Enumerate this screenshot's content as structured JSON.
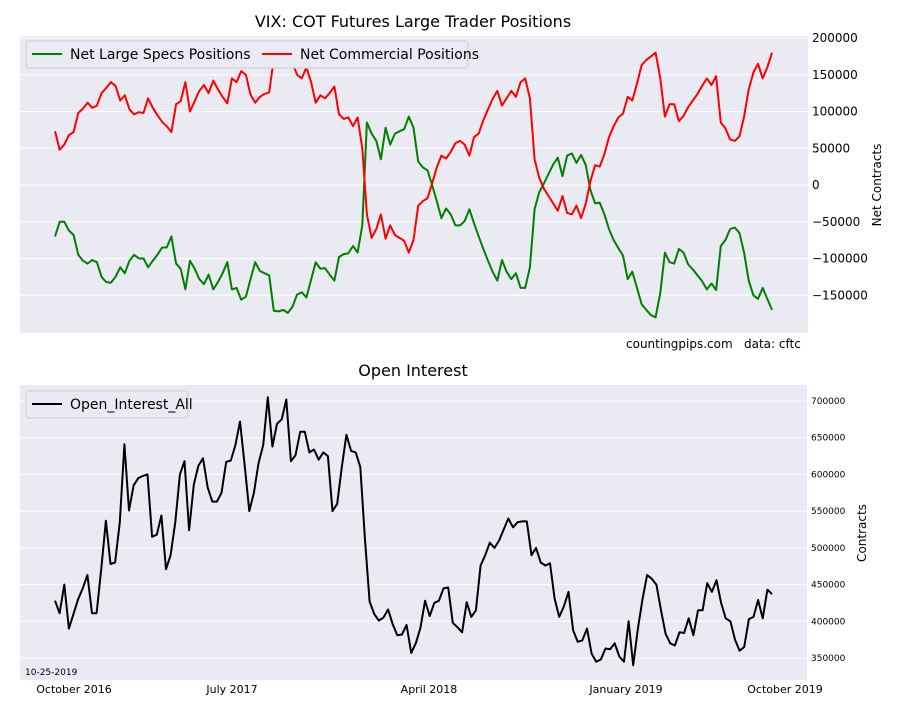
{
  "chart_data": [
    {
      "type": "line",
      "title": "VIX: COT Futures Large Trader Positions",
      "ylabel": "Net Contracts",
      "ylim": [
        -200000,
        200000
      ],
      "yticks": [
        -150000,
        -100000,
        -50000,
        0,
        50000,
        100000,
        150000,
        200000
      ],
      "ytick_labels": [
        "−150000",
        "−100000",
        "−50000",
        "0",
        "50000",
        "100000",
        "150000",
        "200000"
      ],
      "grid": true,
      "legend_position": "top-left",
      "legend_columns": 2,
      "annotations": [
        "countingpips.com",
        "data: cftc"
      ],
      "series": [
        {
          "name": "Net Large Specs Positions",
          "color": "#008000",
          "values": [
            -70000,
            -50000,
            -50000,
            -62000,
            -68000,
            -95000,
            -103000,
            -107000,
            -102000,
            -105000,
            -125000,
            -132000,
            -133000,
            -125000,
            -112000,
            -120000,
            -103000,
            -95000,
            -100000,
            -100000,
            -112000,
            -103000,
            -95000,
            -85000,
            -85000,
            -70000,
            -107000,
            -114000,
            -142000,
            -103000,
            -114000,
            -128000,
            -135000,
            -122000,
            -142000,
            -132000,
            -120000,
            -105000,
            -142000,
            -140000,
            -156000,
            -152000,
            -128000,
            -105000,
            -117000,
            -120000,
            -123000,
            -171000,
            -172000,
            -170000,
            -174000,
            -166000,
            -149000,
            -146000,
            -153000,
            -129000,
            -105000,
            -114000,
            -113000,
            -122000,
            -130000,
            -98000,
            -94000,
            -93000,
            -83000,
            -92000,
            -55000,
            85000,
            70000,
            60000,
            35000,
            78000,
            55000,
            70000,
            73000,
            76000,
            93000,
            78000,
            32000,
            24000,
            20000,
            0,
            -22000,
            -45000,
            -32000,
            -40000,
            -55000,
            -55000,
            -49000,
            -33000,
            -52000,
            -70000,
            -87000,
            -103000,
            -118000,
            -130000,
            -102000,
            -118000,
            -128000,
            -120000,
            -140000,
            -140000,
            -112000,
            -33000,
            -10000,
            2000,
            15000,
            28000,
            37000,
            12000,
            40000,
            43000,
            30000,
            41000,
            27000,
            -7000,
            -25000,
            -24000,
            -40000,
            -60000,
            -75000,
            -86000,
            -96000,
            -128000,
            -118000,
            -140000,
            -162000,
            -170000,
            -177000,
            -180000,
            -147000,
            -92000,
            -105000,
            -107000,
            -87000,
            -92000,
            -108000,
            -115000,
            -123000,
            -131000,
            -142000,
            -134000,
            -143000,
            -83000,
            -75000,
            -60000,
            -58000,
            -65000,
            -92000,
            -130000,
            -150000,
            -155000,
            -140000,
            -155000,
            -170000
          ]
        },
        {
          "name": "Net Commercial Positions",
          "color": "#ff0000",
          "values": [
            73000,
            48000,
            55000,
            68000,
            72000,
            98000,
            104000,
            112000,
            105000,
            108000,
            125000,
            132000,
            140000,
            135000,
            115000,
            122000,
            103000,
            96000,
            99000,
            98000,
            118000,
            105000,
            95000,
            86000,
            80000,
            72000,
            110000,
            114000,
            140000,
            100000,
            114000,
            128000,
            136000,
            125000,
            142000,
            130000,
            120000,
            111000,
            145000,
            140000,
            155000,
            150000,
            123000,
            112000,
            120000,
            124000,
            126000,
            172000,
            175000,
            172000,
            176000,
            166000,
            150000,
            145000,
            160000,
            140000,
            112000,
            122000,
            118000,
            125000,
            134000,
            96000,
            90000,
            92000,
            80000,
            92000,
            50000,
            -40000,
            -72000,
            -60000,
            -40000,
            -73000,
            -55000,
            -68000,
            -72000,
            -76000,
            -92000,
            -75000,
            -28000,
            -22000,
            -18000,
            2000,
            24000,
            40000,
            36000,
            45000,
            57000,
            60000,
            55000,
            40000,
            65000,
            70000,
            88000,
            103000,
            117000,
            128000,
            108000,
            118000,
            128000,
            120000,
            140000,
            145000,
            118000,
            35000,
            10000,
            -5000,
            -15000,
            -25000,
            -35000,
            -15000,
            -38000,
            -40000,
            -28000,
            -45000,
            -25000,
            5000,
            27000,
            25000,
            42000,
            65000,
            80000,
            92000,
            97000,
            120000,
            115000,
            138000,
            163000,
            170000,
            175000,
            180000,
            145000,
            93000,
            110000,
            110000,
            87000,
            94000,
            106000,
            115000,
            124000,
            135000,
            145000,
            136000,
            148000,
            85000,
            77000,
            62000,
            60000,
            66000,
            93000,
            130000,
            153000,
            165000,
            145000,
            160000,
            180000
          ]
        }
      ]
    },
    {
      "type": "line",
      "title": "Open Interest",
      "ylabel": "Contracts",
      "ylim": [
        330000,
        720000
      ],
      "yticks": [
        350000,
        400000,
        450000,
        500000,
        550000,
        600000,
        650000,
        700000
      ],
      "ytick_labels": [
        "350000",
        "400000",
        "450000",
        "500000",
        "550000",
        "600000",
        "650000",
        "700000"
      ],
      "xtick_labels": [
        "October 2016",
        "July 2017",
        "April 2018",
        "January 2019",
        "October 2019"
      ],
      "date_label": "10-25-2019",
      "grid": true,
      "legend_position": "top-left",
      "series": [
        {
          "name": "Open_Interest_All",
          "color": "#000000",
          "values": [
            428000,
            411000,
            450000,
            390000,
            410000,
            430000,
            445000,
            463000,
            411000,
            411000,
            472000,
            537000,
            478000,
            480000,
            535000,
            641000,
            551000,
            585000,
            595000,
            598000,
            600000,
            515000,
            518000,
            544000,
            471000,
            490000,
            535000,
            600000,
            618000,
            524000,
            586000,
            612000,
            622000,
            582000,
            563000,
            563000,
            575000,
            617000,
            619000,
            640000,
            672000,
            612000,
            550000,
            575000,
            615000,
            640000,
            705000,
            638000,
            669000,
            675000,
            702000,
            618000,
            626000,
            658000,
            658000,
            630000,
            634000,
            620000,
            630000,
            625000,
            550000,
            560000,
            610000,
            654000,
            632000,
            630000,
            610000,
            513000,
            427000,
            410000,
            401000,
            405000,
            416000,
            396000,
            381000,
            382000,
            395000,
            357000,
            370000,
            391000,
            428000,
            407000,
            425000,
            428000,
            445000,
            446000,
            398000,
            392000,
            385000,
            426000,
            406000,
            415000,
            476000,
            490000,
            507000,
            500000,
            510000,
            525000,
            540000,
            528000,
            535000,
            536000,
            536000,
            490000,
            500000,
            480000,
            476000,
            479000,
            431000,
            406000,
            420000,
            440000,
            388000,
            372000,
            374000,
            390000,
            356000,
            345000,
            348000,
            363000,
            362000,
            370000,
            352000,
            345000,
            400000,
            340000,
            390000,
            430000,
            463000,
            458000,
            450000,
            415000,
            383000,
            370000,
            367000,
            385000,
            384000,
            404000,
            381000,
            415000,
            415000,
            452000,
            440000,
            456000,
            425000,
            404000,
            400000,
            375000,
            360000,
            365000,
            403000,
            406000,
            429000,
            404000,
            443000,
            437000
          ]
        }
      ]
    }
  ]
}
